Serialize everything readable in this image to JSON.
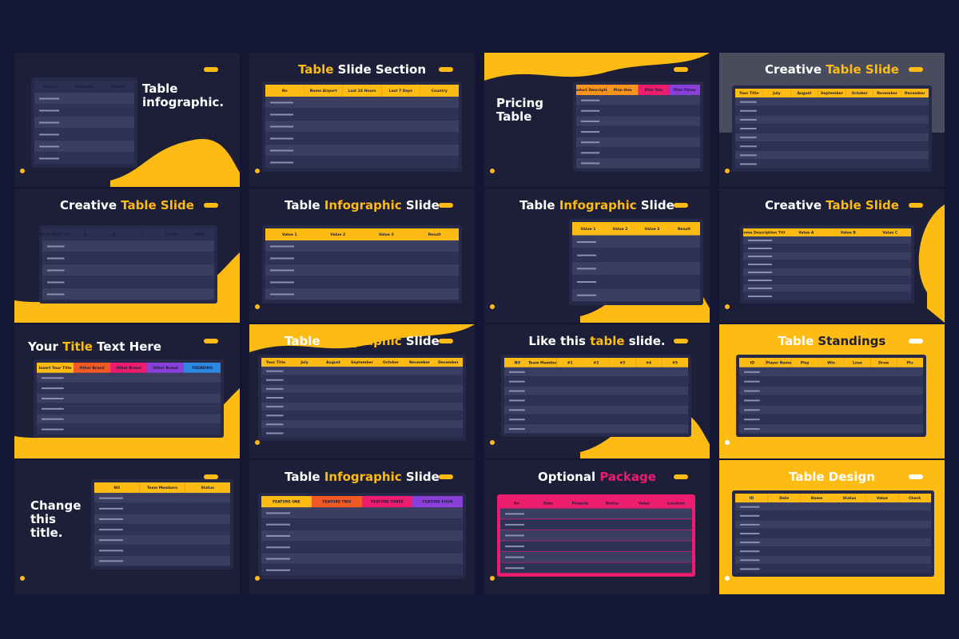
{
  "slides": [
    {
      "title": [
        "Table",
        "infographic."
      ],
      "theme": "dark",
      "headers": [
        "Rate by",
        "Attendee",
        "Tickets"
      ]
    },
    {
      "title": [
        "Table",
        " Slide Section"
      ],
      "highlight": 0,
      "theme": "dark",
      "headers": [
        "No",
        "Name Airport",
        "Last 24 Hours",
        "Last 7 Days",
        "Country"
      ]
    },
    {
      "title": [
        "Pricing",
        "Table"
      ],
      "theme": "dark",
      "headers": [
        "Product Description",
        "Plan One",
        "Plan Two",
        "Plan Three"
      ]
    },
    {
      "title": [
        "Creative ",
        "Table Slide"
      ],
      "highlight": 1,
      "theme": "photo",
      "headers": [
        "Your Title",
        "July",
        "August",
        "September",
        "October",
        "November",
        "December"
      ]
    },
    {
      "title": [
        "Creative ",
        "Table Slide"
      ],
      "highlight": 1,
      "theme": "dark",
      "headers": [
        "YOUR BEST TITLE",
        "A",
        "B",
        "C",
        "VALUE",
        "YEAR"
      ]
    },
    {
      "title": [
        "Table ",
        "Infographic",
        " Slide"
      ],
      "highlight": 1,
      "theme": "dark",
      "headers": [
        "Value 1",
        "Value 2",
        "Value 3",
        "Result"
      ]
    },
    {
      "title": [
        "Table ",
        "Infographic",
        " Slide"
      ],
      "highlight": 1,
      "theme": "dark",
      "headers": [
        "Value 1",
        "Value 2",
        "Value 3",
        "Result"
      ]
    },
    {
      "title": [
        "Creative ",
        "Table Slide"
      ],
      "highlight": 1,
      "theme": "dark",
      "headers": [
        "Some Description Title",
        "Value A",
        "Value B",
        "Value C"
      ]
    },
    {
      "title": [
        "Your ",
        "Title",
        " Text Here"
      ],
      "highlight": 1,
      "theme": "dark",
      "headers": [
        "Insert Your Title",
        "Other Brand",
        "Other Brand",
        "Other Brand",
        "TRENDING"
      ]
    },
    {
      "title": [
        "Table ",
        "Infographic",
        " Slide"
      ],
      "highlight": 1,
      "theme": "dark",
      "headers": [
        "Your Title",
        "July",
        "August",
        "September",
        "October",
        "November",
        "December"
      ]
    },
    {
      "title": [
        "Like this ",
        "table",
        " slide."
      ],
      "highlight": 1,
      "theme": "dark",
      "headers": [
        "NO",
        "Team Members",
        "#1",
        "#2",
        "#3",
        "#4",
        "#5"
      ]
    },
    {
      "title": [
        "Table ",
        "Standings"
      ],
      "highlight": 1,
      "theme": "yellow",
      "headers": [
        "ID",
        "Player Name",
        "Play",
        "Win",
        "Lose",
        "Draw",
        "Pts"
      ]
    },
    {
      "title": [
        "Change",
        "this",
        "title."
      ],
      "theme": "dark",
      "headers": [
        "NO",
        "Team Members",
        "Status"
      ]
    },
    {
      "title": [
        "Table ",
        "Infographic",
        " Slide"
      ],
      "highlight": 1,
      "theme": "dark",
      "headers": [
        "FEATURE ONE",
        "FEATURE TWO",
        "FEATURE THREE",
        "FEATURE FOUR"
      ]
    },
    {
      "title": [
        "Optional ",
        "Package"
      ],
      "highlight": 1,
      "theme": "dark",
      "headers": [
        "No",
        "Date",
        "Projects",
        "Status",
        "Value",
        "Location"
      ]
    },
    {
      "title": [
        "Table Design"
      ],
      "theme": "yellow",
      "headers": [
        "ID",
        "Date",
        "Name",
        "Status",
        "Value",
        "Check"
      ]
    }
  ]
}
